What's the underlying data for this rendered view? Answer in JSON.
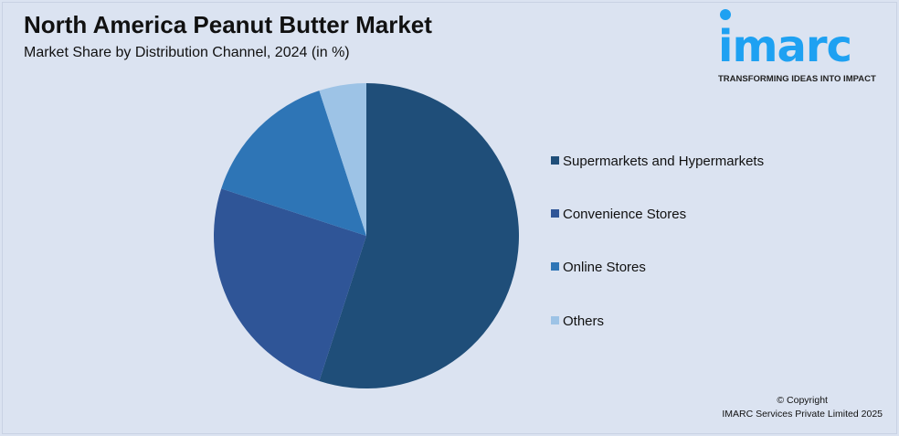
{
  "header": {
    "title": "North America Peanut Butter Market",
    "subtitle": "Market Share by Distribution Channel, 2024 (in %)"
  },
  "logo": {
    "text": "imarc",
    "tagline": "TRANSFORMING IDEAS INTO IMPACT",
    "color": "#1ea1f2"
  },
  "chart_data": {
    "type": "pie",
    "title": "North America Peanut Butter Market",
    "subtitle": "Market Share by Distribution Channel, 2024 (in %)",
    "categories": [
      "Supermarkets and Hypermarkets",
      "Convenience Stores",
      "Online Stores",
      "Others"
    ],
    "values": [
      55,
      25,
      15,
      5
    ],
    "colors": [
      "#1f4e79",
      "#2f5597",
      "#2e75b6",
      "#9dc3e6"
    ],
    "legend": "right"
  },
  "footer": {
    "copyright": "© Copyright",
    "company": "IMARC Services Private Limited 2025"
  }
}
